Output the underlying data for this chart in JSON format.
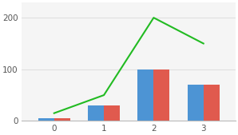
{
  "categories": [
    0,
    1,
    2,
    3
  ],
  "bar_blue": [
    5,
    30,
    100,
    70
  ],
  "bar_red": [
    5,
    30,
    100,
    70
  ],
  "line_values": [
    15,
    50,
    200,
    150
  ],
  "bar_color_blue": "#4d94d4",
  "bar_color_red": "#e05a4e",
  "line_color": "#22bb22",
  "background_color": "#ffffff",
  "plot_bg_color": "#f5f5f5",
  "ylim": [
    0,
    230
  ],
  "yticks": [
    0,
    100,
    200
  ],
  "bar_width": 0.32
}
